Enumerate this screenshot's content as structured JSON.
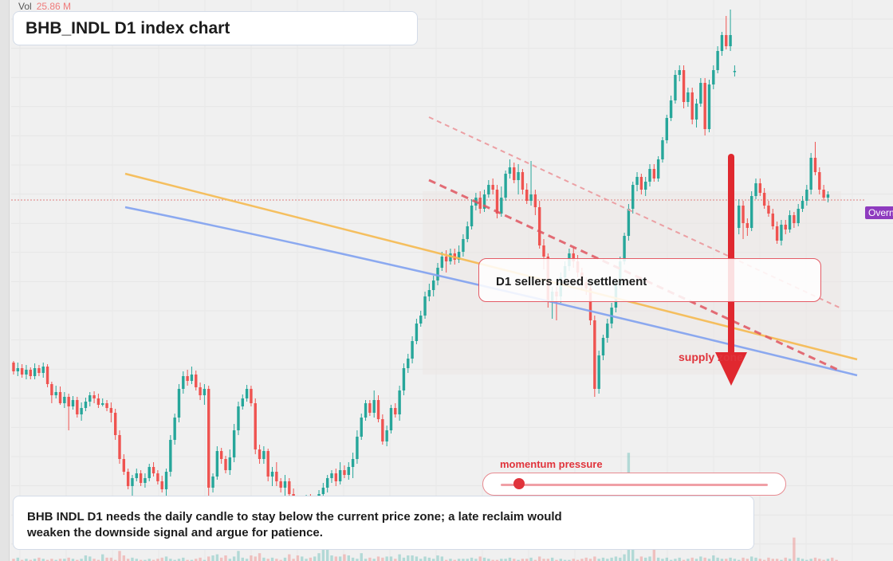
{
  "header": {
    "title": "BHB_INDL D1 index chart",
    "volume_label": "Vol",
    "volume_value": "25.86 M"
  },
  "annotations": {
    "callout_text": "D1 sellers need settlement",
    "supply_label": "supply zone",
    "momentum_label": "momentum pressure",
    "momentum_level": 0.07,
    "note_text": "BHB INDL D1 needs the daily candle to stay below the current price zone; a late reclaim would weaken the downside signal and argue for patience.",
    "price_badge": "Overnight"
  },
  "colors": {
    "up": "#26a69a",
    "down": "#ef5350",
    "accent_red": "#e0333b",
    "trend_orange": "#f5b94f",
    "trend_blue": "#7fa1f0",
    "badge": "#8e3bbf"
  },
  "chart_data": {
    "type": "candlestick",
    "price_scale": "hidden",
    "grid": true,
    "candles": [
      [
        455,
        466,
        453,
        470
      ],
      [
        466,
        462,
        455,
        472
      ],
      [
        462,
        470,
        457,
        474
      ],
      [
        470,
        464,
        458,
        476
      ],
      [
        464,
        472,
        461,
        476
      ],
      [
        472,
        462,
        456,
        476
      ],
      [
        462,
        468,
        458,
        472
      ],
      [
        468,
        460,
        455,
        474
      ],
      [
        460,
        482,
        457,
        486
      ],
      [
        482,
        496,
        479,
        506
      ],
      [
        496,
        492,
        484,
        500
      ],
      [
        492,
        506,
        485,
        508
      ],
      [
        506,
        498,
        492,
        512
      ],
      [
        498,
        510,
        494,
        540
      ],
      [
        510,
        502,
        497,
        514
      ],
      [
        502,
        520,
        498,
        524
      ],
      [
        520,
        512,
        505,
        528
      ],
      [
        512,
        504,
        499,
        516
      ],
      [
        504,
        496,
        492,
        510
      ],
      [
        496,
        500,
        491,
        506
      ],
      [
        500,
        508,
        494,
        512
      ],
      [
        508,
        506,
        500,
        510
      ],
      [
        506,
        512,
        502,
        516
      ],
      [
        512,
        518,
        505,
        530
      ],
      [
        518,
        546,
        513,
        552
      ],
      [
        546,
        576,
        540,
        582
      ],
      [
        576,
        592,
        570,
        596
      ],
      [
        592,
        610,
        588,
        614
      ],
      [
        610,
        600,
        596,
        622
      ],
      [
        600,
        594,
        588,
        604
      ],
      [
        594,
        606,
        590,
        610
      ],
      [
        606,
        600,
        594,
        612
      ],
      [
        600,
        586,
        582,
        604
      ],
      [
        586,
        594,
        580,
        598
      ],
      [
        594,
        604,
        590,
        608
      ],
      [
        604,
        614,
        597,
        618
      ],
      [
        614,
        592,
        588,
        625
      ],
      [
        592,
        552,
        546,
        598
      ],
      [
        552,
        524,
        519,
        558
      ],
      [
        524,
        488,
        482,
        530
      ],
      [
        488,
        472,
        466,
        494
      ],
      [
        472,
        478,
        464,
        484
      ],
      [
        478,
        470,
        460,
        482
      ],
      [
        470,
        486,
        465,
        490
      ],
      [
        486,
        496,
        480,
        502
      ],
      [
        496,
        488,
        482,
        508
      ],
      [
        488,
        612,
        484,
        640
      ],
      [
        612,
        598,
        594,
        618
      ],
      [
        598,
        566,
        560,
        602
      ],
      [
        566,
        576,
        562,
        582
      ],
      [
        576,
        590,
        572,
        594
      ],
      [
        590,
        574,
        564,
        596
      ],
      [
        574,
        540,
        532,
        580
      ],
      [
        540,
        510,
        504,
        546
      ],
      [
        510,
        500,
        495,
        514
      ],
      [
        500,
        488,
        483,
        504
      ],
      [
        488,
        506,
        484,
        510
      ],
      [
        506,
        564,
        500,
        570
      ],
      [
        564,
        576,
        558,
        582
      ],
      [
        576,
        566,
        560,
        582
      ],
      [
        566,
        598,
        563,
        604
      ],
      [
        598,
        592,
        586,
        610
      ],
      [
        592,
        604,
        580,
        610
      ],
      [
        604,
        612,
        600,
        618
      ],
      [
        612,
        604,
        596,
        630
      ],
      [
        604,
        620,
        600,
        626
      ],
      [
        620,
        636,
        613,
        646
      ],
      [
        636,
        648,
        630,
        654
      ],
      [
        648,
        642,
        634,
        652
      ],
      [
        642,
        626,
        621,
        648
      ],
      [
        626,
        640,
        620,
        646
      ],
      [
        640,
        632,
        624,
        646
      ],
      [
        632,
        620,
        615,
        638
      ],
      [
        620,
        612,
        606,
        626
      ],
      [
        612,
        600,
        596,
        618
      ],
      [
        600,
        594,
        590,
        606
      ],
      [
        594,
        604,
        588,
        610
      ],
      [
        604,
        590,
        580,
        608
      ],
      [
        590,
        596,
        584,
        600
      ],
      [
        596,
        586,
        580,
        602
      ],
      [
        586,
        576,
        568,
        600
      ],
      [
        576,
        548,
        540,
        582
      ],
      [
        548,
        524,
        519,
        552
      ],
      [
        524,
        506,
        502,
        528
      ],
      [
        506,
        518,
        502,
        522
      ],
      [
        518,
        502,
        490,
        524
      ],
      [
        502,
        526,
        496,
        530
      ],
      [
        526,
        554,
        520,
        558
      ],
      [
        554,
        540,
        534,
        560
      ],
      [
        540,
        512,
        508,
        544
      ],
      [
        512,
        520,
        506,
        524
      ],
      [
        520,
        490,
        484,
        528
      ],
      [
        490,
        462,
        456,
        496
      ],
      [
        462,
        450,
        444,
        468
      ],
      [
        450,
        428,
        422,
        456
      ],
      [
        428,
        406,
        400,
        432
      ],
      [
        406,
        396,
        390,
        410
      ],
      [
        396,
        372,
        366,
        400
      ],
      [
        372,
        364,
        356,
        378
      ],
      [
        364,
        352,
        346,
        372
      ],
      [
        352,
        336,
        330,
        358
      ],
      [
        336,
        322,
        316,
        340
      ],
      [
        322,
        328,
        314,
        342
      ],
      [
        328,
        318,
        312,
        332
      ],
      [
        318,
        326,
        312,
        332
      ],
      [
        326,
        316,
        308,
        330
      ],
      [
        316,
        300,
        294,
        322
      ],
      [
        300,
        284,
        278,
        304
      ],
      [
        284,
        258,
        250,
        288
      ],
      [
        258,
        248,
        242,
        264
      ],
      [
        248,
        262,
        240,
        268
      ],
      [
        262,
        244,
        238,
        266
      ],
      [
        244,
        232,
        226,
        248
      ],
      [
        232,
        238,
        224,
        244
      ],
      [
        238,
        268,
        232,
        274
      ],
      [
        268,
        248,
        234,
        272
      ],
      [
        248,
        218,
        214,
        252
      ],
      [
        218,
        210,
        200,
        224
      ],
      [
        210,
        226,
        204,
        230
      ],
      [
        226,
        216,
        206,
        244
      ],
      [
        216,
        238,
        212,
        244
      ],
      [
        238,
        252,
        230,
        256
      ],
      [
        252,
        244,
        202,
        258
      ],
      [
        244,
        260,
        238,
        270
      ],
      [
        260,
        308,
        252,
        312
      ],
      [
        308,
        322,
        300,
        338
      ],
      [
        322,
        378,
        318,
        386
      ],
      [
        378,
        366,
        360,
        400
      ],
      [
        366,
        372,
        360,
        402
      ],
      [
        372,
        348,
        342,
        380
      ],
      [
        348,
        334,
        328,
        354
      ],
      [
        334,
        318,
        312,
        340
      ],
      [
        318,
        328,
        310,
        336
      ],
      [
        328,
        342,
        320,
        348
      ],
      [
        342,
        354,
        336,
        362
      ],
      [
        354,
        362,
        348,
        370
      ],
      [
        362,
        402,
        356,
        408
      ],
      [
        402,
        488,
        396,
        498
      ],
      [
        488,
        446,
        440,
        494
      ],
      [
        446,
        424,
        420,
        452
      ],
      [
        424,
        406,
        400,
        430
      ],
      [
        406,
        386,
        380,
        412
      ],
      [
        386,
        356,
        350,
        392
      ],
      [
        356,
        328,
        322,
        362
      ],
      [
        328,
        296,
        292,
        332
      ],
      [
        296,
        262,
        256,
        302
      ],
      [
        262,
        232,
        228,
        268
      ],
      [
        232,
        222,
        216,
        240
      ],
      [
        222,
        238,
        218,
        244
      ],
      [
        238,
        228,
        222,
        246
      ],
      [
        228,
        212,
        206,
        234
      ],
      [
        212,
        224,
        206,
        228
      ],
      [
        224,
        200,
        196,
        228
      ],
      [
        200,
        176,
        172,
        204
      ],
      [
        176,
        148,
        144,
        180
      ],
      [
        148,
        126,
        120,
        152
      ],
      [
        126,
        94,
        88,
        130
      ],
      [
        94,
        88,
        82,
        102
      ],
      [
        88,
        128,
        82,
        136
      ],
      [
        128,
        116,
        110,
        134
      ],
      [
        116,
        150,
        110,
        156
      ],
      [
        150,
        130,
        124,
        160
      ],
      [
        130,
        104,
        98,
        134
      ],
      [
        104,
        162,
        98,
        170
      ],
      [
        162,
        106,
        100,
        166
      ],
      [
        106,
        88,
        82,
        112
      ],
      [
        88,
        64,
        58,
        92
      ],
      [
        64,
        44,
        40,
        70
      ],
      [
        44,
        58,
        20,
        62
      ],
      [
        58,
        44,
        12,
        64
      ],
      [
        89,
        89,
        82,
        96
      ],
      [
        286,
        258,
        250,
        294
      ],
      [
        258,
        280,
        252,
        300
      ],
      [
        280,
        286,
        274,
        296
      ],
      [
        286,
        246,
        240,
        290
      ],
      [
        246,
        230,
        224,
        250
      ],
      [
        230,
        242,
        224,
        246
      ],
      [
        242,
        258,
        236,
        262
      ],
      [
        258,
        268,
        252,
        272
      ],
      [
        268,
        284,
        262,
        288
      ],
      [
        284,
        302,
        278,
        306
      ],
      [
        302,
        282,
        276,
        308
      ],
      [
        282,
        288,
        276,
        294
      ],
      [
        288,
        270,
        264,
        292
      ],
      [
        270,
        280,
        266,
        286
      ],
      [
        280,
        262,
        256,
        284
      ],
      [
        262,
        252,
        246,
        266
      ],
      [
        252,
        238,
        232,
        258
      ],
      [
        238,
        198,
        192,
        244
      ],
      [
        198,
        216,
        178,
        220
      ],
      [
        216,
        238,
        210,
        244
      ],
      [
        238,
        248,
        232,
        252
      ],
      [
        248,
        244,
        240,
        254
      ]
    ],
    "volumes": [
      0.02,
      0.03,
      0.01,
      0.02,
      0.01,
      0.02,
      0.03,
      0.02,
      0.01,
      0.02,
      0.01,
      0.02,
      0.02,
      0.03,
      0.02,
      0.01,
      0.02,
      0.05,
      0.04,
      0.02,
      0.01,
      0.06,
      0.03,
      0.03,
      0.01,
      0.09,
      0.05,
      0.02,
      0.03,
      0.02,
      0.01,
      0.01,
      0.02,
      0.01,
      0.02,
      0.03,
      0.04,
      0.02,
      0.01,
      0.02,
      0.03,
      0.01,
      0.01,
      0.02,
      0.03,
      0.01,
      0.04,
      0.05,
      0.06,
      0.03,
      0.05,
      0.02,
      0.04,
      0.09,
      0.03,
      0.02,
      0.05,
      0.04,
      0.07,
      0.03,
      0.02,
      0.03,
      0.02,
      0.01,
      0.03,
      0.06,
      0.02,
      0.05,
      0.04,
      0.02,
      0.03,
      0.04,
      0.07,
      0.11,
      0.13,
      0.05,
      0.04,
      0.04,
      0.06,
      0.05,
      0.03,
      0.02,
      0.07,
      0.02,
      0.03,
      0.02,
      0.04,
      0.03,
      0.04,
      0.04,
      0.02,
      0.06,
      0.03,
      0.05,
      0.05,
      0.04,
      0.02,
      0.04,
      0.03,
      0.02,
      0.05,
      0.04,
      0.01,
      0.02,
      0.01,
      0.02,
      0.02,
      0.02,
      0.03,
      0.02,
      0.04,
      0.03,
      0.02,
      0.01,
      0.01,
      0.02,
      0.02,
      0.03,
      0.02,
      0.01,
      0.02,
      0.02,
      0.03,
      0.01,
      0.04,
      0.02,
      0.02,
      0.03,
      0.01,
      0.02,
      0.01,
      0.01,
      0.02,
      0.01,
      0.02,
      0.03,
      0.02,
      0.04,
      0.02,
      0.03,
      0.02,
      0.03,
      0.04,
      0.03,
      0.06,
      0.97,
      0.15,
      0.02,
      0.04,
      0.03,
      0.04,
      0.42,
      0.03,
      0.02,
      0.03,
      0.01,
      0.02,
      0.03,
      0.01,
      0.02,
      0.03,
      0.02,
      0.04,
      0.03,
      0.02,
      0.05,
      0.03,
      0.02,
      0.02,
      0.03,
      0.02,
      0.01,
      0.03,
      0.02,
      0.04,
      0.03,
      0.02,
      0.01,
      0.03,
      0.02,
      0.02,
      0.01,
      0.03,
      0.02,
      0.21,
      0.03,
      0.02,
      0.01,
      0.02,
      0.03,
      0.02,
      0.01,
      0.02,
      0.03,
      0.01
    ],
    "trendlines": [
      {
        "style": "orange",
        "from": [
          0,
          0
        ],
        "to": [
          0,
          0
        ]
      },
      {
        "style": "blue",
        "from": [
          0,
          0
        ],
        "to": [
          0,
          0
        ]
      },
      {
        "style": "red-dashed",
        "from": [
          0,
          0
        ],
        "to": [
          0,
          0
        ]
      },
      {
        "style": "red-dashed-light",
        "from": [
          0,
          0
        ],
        "to": [
          0,
          0
        ]
      }
    ],
    "signal": "downside"
  }
}
